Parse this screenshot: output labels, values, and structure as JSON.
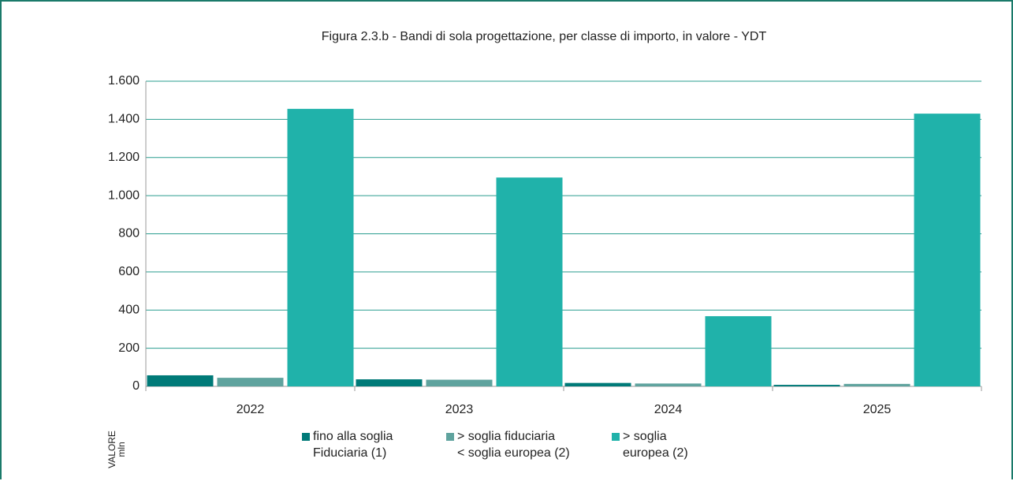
{
  "chart_data": {
    "type": "bar",
    "title": "Figura 2.3.b - Bandi di sola progettazione, per classe di importo, in valore - YDT",
    "y_label": "VALORE\nmln",
    "categories": [
      "2022",
      "2023",
      "2024",
      "2025"
    ],
    "series": [
      {
        "name": "fino alla soglia\nFiduciaria (1)",
        "color": "#007a78",
        "values": [
          58,
          37,
          18,
          8
        ]
      },
      {
        "name": "> soglia fiduciaria\n< soglia europea (2)",
        "color": "#5fa39e",
        "values": [
          45,
          35,
          15,
          13
        ]
      },
      {
        "name": "> soglia\neuropea (2)",
        "color": "#20b2aa",
        "values": [
          1455,
          1095,
          368,
          1430
        ]
      }
    ],
    "ylim": [
      0,
      1600
    ],
    "yticks": [
      0,
      200,
      400,
      600,
      800,
      {
        "value": 1000,
        "label": "1.000"
      },
      {
        "value": 1200,
        "label": "1.200"
      },
      {
        "value": 1400,
        "label": "1.400"
      },
      {
        "value": 1600,
        "label": "1.600"
      }
    ],
    "grid": true,
    "legend": "bottom"
  }
}
